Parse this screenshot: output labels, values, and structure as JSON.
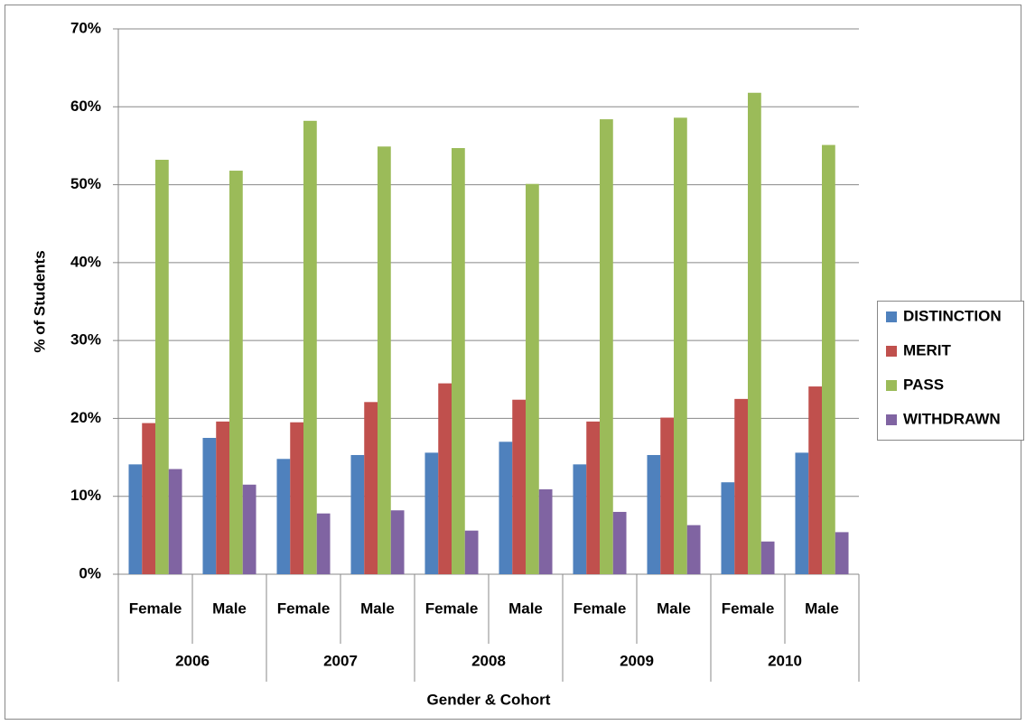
{
  "chart_data": {
    "type": "bar",
    "y_label": "% of Students",
    "x_label": "Gender & Cohort",
    "categories": [
      "Female",
      "Male",
      "Female",
      "Male",
      "Female",
      "Male",
      "Female",
      "Male",
      "Female",
      "Male"
    ],
    "groups": [
      "2006",
      "2007",
      "2008",
      "2009",
      "2010"
    ],
    "series": [
      {
        "name": "DISTINCTION",
        "color": "#4F81BD",
        "values": [
          14.1,
          17.5,
          14.8,
          15.3,
          15.6,
          17.0,
          14.1,
          15.3,
          11.8,
          15.6
        ]
      },
      {
        "name": "MERIT",
        "color": "#C0504D",
        "values": [
          19.4,
          19.6,
          19.5,
          22.1,
          24.5,
          22.4,
          19.6,
          20.1,
          22.5,
          24.1
        ]
      },
      {
        "name": "PASS",
        "color": "#9BBB59",
        "values": [
          53.2,
          51.8,
          58.2,
          54.9,
          54.7,
          50.1,
          58.4,
          58.6,
          61.8,
          55.1
        ]
      },
      {
        "name": "WITHDRAWN",
        "color": "#8064A2",
        "values": [
          13.5,
          11.5,
          7.8,
          8.2,
          5.6,
          10.9,
          8.0,
          6.3,
          4.2,
          5.4
        ]
      }
    ],
    "ylim": [
      0,
      70
    ],
    "yticks": [
      {
        "value": 0,
        "label": "0%"
      },
      {
        "value": 10,
        "label": "10%"
      },
      {
        "value": 20,
        "label": "20%"
      },
      {
        "value": 30,
        "label": "30%"
      },
      {
        "value": 40,
        "label": "40%"
      },
      {
        "value": 50,
        "label": "50%"
      },
      {
        "value": 60,
        "label": "60%"
      },
      {
        "value": 70,
        "label": "70%"
      }
    ],
    "grid": true,
    "legend": "right"
  }
}
